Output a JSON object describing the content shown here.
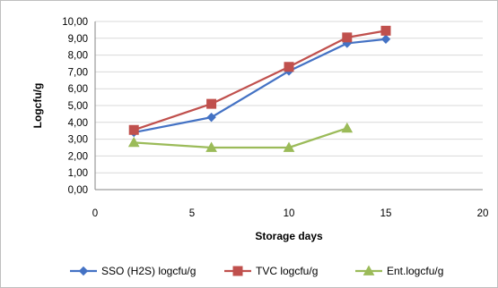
{
  "chart_data": {
    "type": "line",
    "title": "",
    "xlabel": "Storage days",
    "ylabel": "Logcfu/g",
    "xlim": [
      0,
      20
    ],
    "ylim": [
      0,
      10
    ],
    "x_ticks": [
      0,
      5,
      10,
      15,
      20
    ],
    "x_tick_labels": [
      "0",
      "5",
      "10",
      "15",
      "20"
    ],
    "y_ticks": [
      0,
      1,
      2,
      3,
      4,
      5,
      6,
      7,
      8,
      9,
      10
    ],
    "y_tick_labels": [
      "0,00",
      "1,00",
      "2,00",
      "3,00",
      "4,00",
      "5,00",
      "6,00",
      "7,00",
      "8,00",
      "9,00",
      "10,00"
    ],
    "grid": "horizontal",
    "legend_position": "bottom",
    "series": [
      {
        "name": "SSO (H2S) logcfu/g",
        "color": "#4472C4",
        "marker": "diamond",
        "x": [
          2,
          6,
          10,
          13,
          15
        ],
        "y": [
          3.4,
          4.3,
          7.05,
          8.7,
          8.95
        ]
      },
      {
        "name": "TVC logcfu/g",
        "color": "#C0504D",
        "marker": "square",
        "x": [
          2,
          6,
          10,
          13,
          15
        ],
        "y": [
          3.55,
          5.1,
          7.3,
          9.05,
          9.45
        ]
      },
      {
        "name": "Ent.logcfu/g",
        "color": "#9BBB59",
        "marker": "triangle",
        "x": [
          2,
          6,
          10,
          13
        ],
        "y": [
          2.8,
          2.5,
          2.5,
          3.65
        ]
      }
    ]
  }
}
